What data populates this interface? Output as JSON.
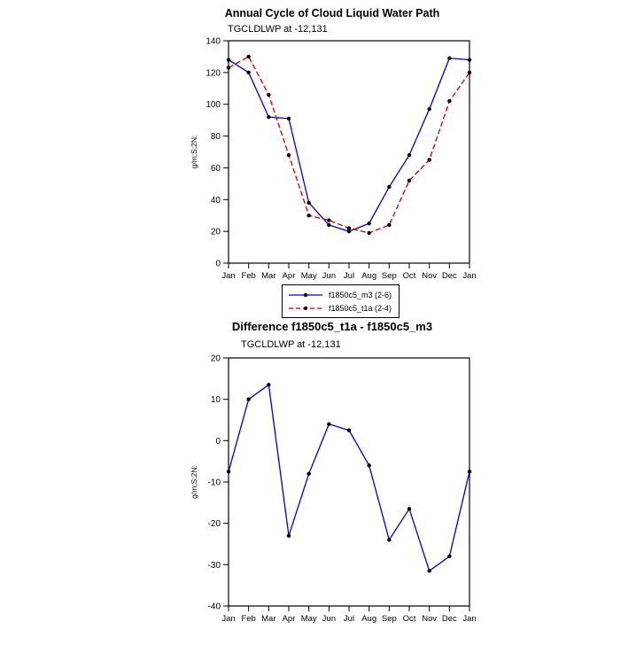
{
  "page": {
    "background": "#ffffff"
  },
  "colors": {
    "axis": "#000000",
    "marker": "#000000"
  },
  "chart_data": [
    {
      "type": "line",
      "title": "Annual Cycle of Cloud Liquid Water Path",
      "subtitle": "TGCLDLWP at -12,131",
      "ylabel": "g/m;S;2N:",
      "xlabel": "",
      "categories": [
        "Jan",
        "Feb",
        "Mar",
        "Apr",
        "May",
        "Jun",
        "Jul",
        "Aug",
        "Sep",
        "Oct",
        "Nov",
        "Dec",
        "Jan"
      ],
      "ylim": [
        0,
        140
      ],
      "ytick": 20,
      "grid": false,
      "legend_position": "below",
      "series": [
        {
          "name": "f1850c5_m3 (2-6)",
          "color": "#0000cc",
          "dash": "solid",
          "values": [
            128,
            120,
            92,
            91,
            38,
            24,
            20,
            25,
            48,
            68,
            97,
            129,
            128
          ]
        },
        {
          "name": "f1850c5_t1a (2-4)",
          "color": "#cc0000",
          "dash": "dashed",
          "values": [
            123,
            130,
            106,
            68,
            30,
            27,
            22,
            19,
            24,
            52,
            65,
            102,
            120
          ]
        }
      ]
    },
    {
      "type": "line",
      "title": "Difference f1850c5_t1a - f1850c5_m3",
      "subtitle": "TGCLDLWP at -12,131",
      "ylabel": "g/m;S;2N:",
      "xlabel": "",
      "categories": [
        "Jan",
        "Feb",
        "Mar",
        "Apr",
        "May",
        "Jun",
        "Jul",
        "Aug",
        "Sep",
        "Oct",
        "Nov",
        "Dec",
        "Jan"
      ],
      "ylim": [
        -40,
        20
      ],
      "ytick": 10,
      "grid": false,
      "legend_position": "none",
      "series": [
        {
          "color": "#0000cc",
          "dash": "solid",
          "values": [
            -7.5,
            10,
            13.5,
            -23,
            -8,
            4,
            2.5,
            -6,
            -24,
            -16.5,
            -31.5,
            -28,
            -7.5
          ]
        }
      ]
    }
  ]
}
